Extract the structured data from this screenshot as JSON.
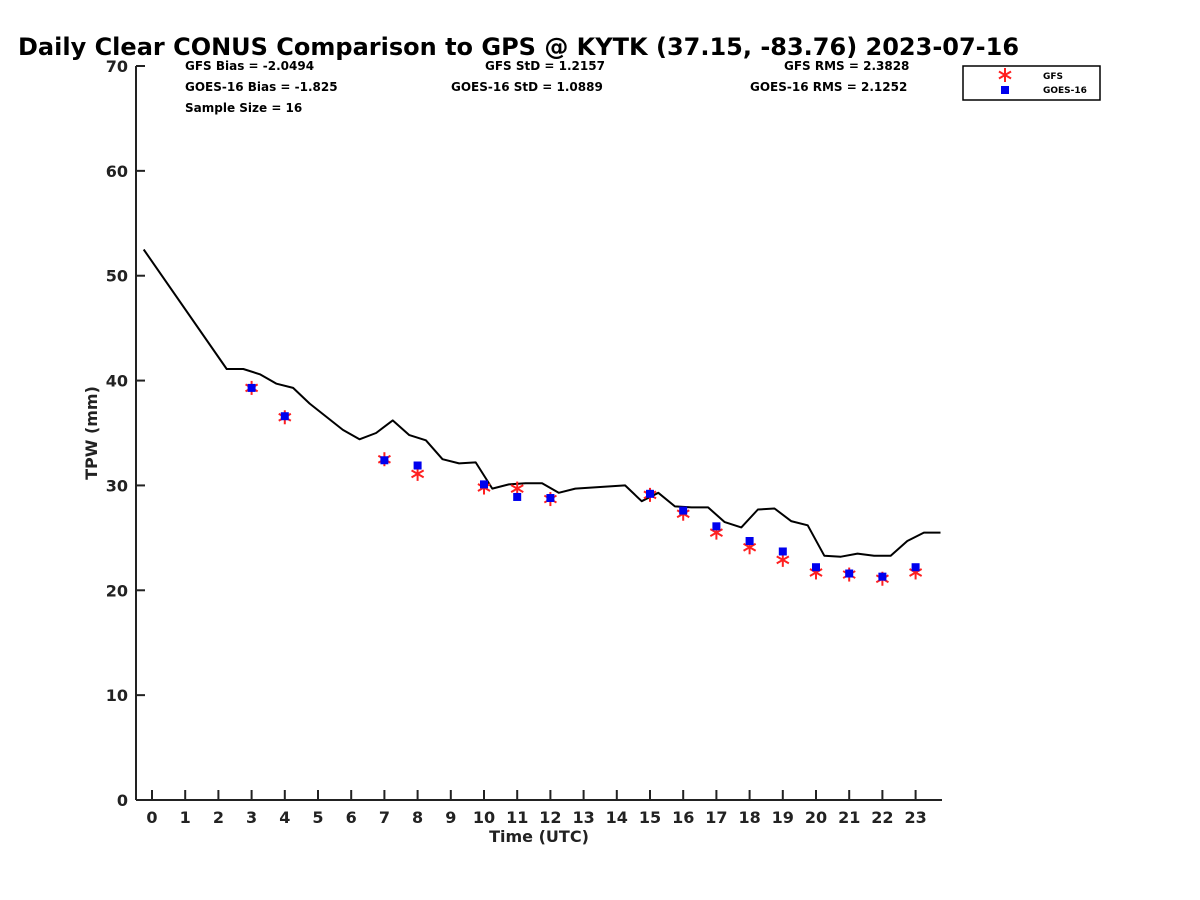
{
  "chart_data": {
    "type": "line",
    "title": "Daily Clear CONUS Comparison to GPS @ KYTK (37.15, -83.76) 2023-07-16",
    "xlabel": "Time (UTC)",
    "ylabel": "TPW (mm)",
    "xlim": [
      -0.5,
      23.75
    ],
    "ylim": [
      0,
      70
    ],
    "x_ticks": [
      0,
      1,
      2,
      3,
      4,
      5,
      6,
      7,
      8,
      9,
      10,
      11,
      12,
      13,
      14,
      15,
      16,
      17,
      18,
      19,
      20,
      21,
      22,
      23
    ],
    "y_ticks": [
      0,
      10,
      20,
      30,
      40,
      50,
      60,
      70
    ],
    "grid": false,
    "legend_position": "top-right",
    "stats": [
      "GFS Bias = -2.0494",
      "GFS StD = 1.2157",
      "GFS RMS = 2.3828",
      "GOES-16 Bias = -1.825",
      "GOES-16 StD = 1.0889",
      "GOES-16 RMS = 2.1252",
      "Sample Size = 16"
    ],
    "series": [
      {
        "kind": "line",
        "color": "#000000",
        "points": [
          [
            -0.25,
            52.5
          ],
          [
            2.25,
            41.1
          ],
          [
            2.75,
            41.1
          ],
          [
            3.25,
            40.6
          ],
          [
            3.75,
            39.7
          ],
          [
            4.25,
            39.3
          ],
          [
            4.75,
            37.8
          ],
          [
            5.75,
            35.3
          ],
          [
            6.25,
            34.4
          ],
          [
            6.75,
            35.0
          ],
          [
            7.25,
            36.2
          ],
          [
            7.75,
            34.8
          ],
          [
            8.25,
            34.3
          ],
          [
            8.75,
            32.5
          ],
          [
            9.25,
            32.1
          ],
          [
            9.75,
            32.2
          ],
          [
            10.25,
            29.7
          ],
          [
            10.75,
            30.1
          ],
          [
            11.25,
            30.2
          ],
          [
            11.75,
            30.2
          ],
          [
            12.25,
            29.3
          ],
          [
            12.75,
            29.7
          ],
          [
            14.25,
            30.0
          ],
          [
            14.75,
            28.5
          ],
          [
            15.25,
            29.3
          ],
          [
            15.75,
            28.0
          ],
          [
            16.25,
            27.9
          ],
          [
            16.75,
            27.9
          ],
          [
            17.25,
            26.5
          ],
          [
            17.75,
            26.0
          ],
          [
            18.25,
            27.7
          ],
          [
            18.75,
            27.8
          ],
          [
            19.25,
            26.6
          ],
          [
            19.75,
            26.2
          ],
          [
            20.25,
            23.3
          ],
          [
            20.75,
            23.2
          ],
          [
            21.25,
            23.5
          ],
          [
            21.75,
            23.3
          ],
          [
            22.25,
            23.3
          ],
          [
            22.75,
            24.7
          ],
          [
            23.25,
            25.5
          ],
          [
            23.75,
            25.5
          ]
        ]
      },
      {
        "name": "GFS",
        "kind": "asterisk",
        "color": "#ff2020",
        "points": [
          [
            3,
            39.3
          ],
          [
            4,
            36.5
          ],
          [
            7,
            32.5
          ],
          [
            8,
            31.1
          ],
          [
            10,
            29.8
          ],
          [
            11,
            29.7
          ],
          [
            12,
            28.7
          ],
          [
            15,
            29.1
          ],
          [
            16,
            27.3
          ],
          [
            17,
            25.5
          ],
          [
            18,
            24.1
          ],
          [
            19,
            22.9
          ],
          [
            20,
            21.7
          ],
          [
            21,
            21.5
          ],
          [
            22,
            21.1
          ],
          [
            23,
            21.7
          ]
        ]
      },
      {
        "name": "GOES-16",
        "kind": "square",
        "color": "#0000ee",
        "points": [
          [
            3,
            39.3
          ],
          [
            4,
            36.6
          ],
          [
            7,
            32.4
          ],
          [
            8,
            31.9
          ],
          [
            10,
            30.1
          ],
          [
            11,
            28.9
          ],
          [
            12,
            28.8
          ],
          [
            15,
            29.2
          ],
          [
            16,
            27.6
          ],
          [
            17,
            26.1
          ],
          [
            18,
            24.7
          ],
          [
            19,
            23.7
          ],
          [
            20,
            22.2
          ],
          [
            21,
            21.6
          ],
          [
            22,
            21.3
          ],
          [
            23,
            22.2
          ]
        ]
      }
    ]
  }
}
